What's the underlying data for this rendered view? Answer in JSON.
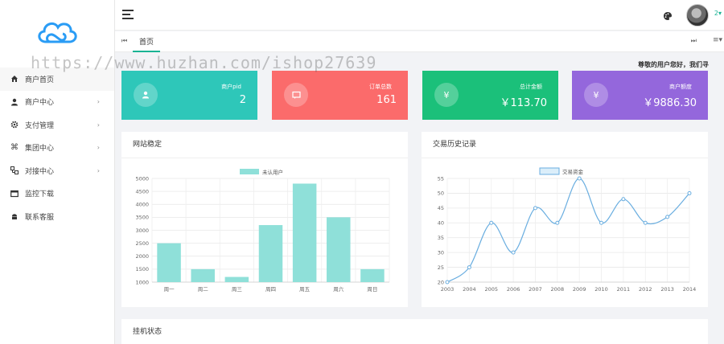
{
  "sidebar": {
    "items": [
      {
        "label": "商户首页",
        "icon": "home-icon",
        "arrow": ""
      },
      {
        "label": "商户中心",
        "icon": "user-icon",
        "arrow": "›"
      },
      {
        "label": "支付管理",
        "icon": "gear-icon",
        "arrow": "›"
      },
      {
        "label": "集团中心",
        "icon": "command-icon",
        "arrow": "›"
      },
      {
        "label": "对接中心",
        "icon": "connect-icon",
        "arrow": "›"
      },
      {
        "label": "监控下载",
        "icon": "window-icon",
        "arrow": ""
      },
      {
        "label": "联系客服",
        "icon": "android-icon",
        "arrow": ""
      }
    ]
  },
  "topbar": {
    "user_num": "2▾"
  },
  "tabs": {
    "first": "⏮",
    "home": "首页",
    "last": "⏭",
    "menu": "≡▾"
  },
  "greeting": "尊敬的用户您好，我们寻",
  "stats": [
    {
      "label": "商户pid",
      "value": "2",
      "icon": "user-icon",
      "color": "#2ec7b9"
    },
    {
      "label": "订单总数",
      "value": "161",
      "icon": "message-icon",
      "color": "#fb6b6b"
    },
    {
      "label": "总计金额",
      "value": "￥113.70",
      "icon": "yen-icon",
      "color": "#1bc07a"
    },
    {
      "label": "商户额度",
      "value": "￥9886.30",
      "icon": "yen-icon",
      "color": "#9467dc"
    }
  ],
  "panels": {
    "site_title": "网站稳定",
    "trade_title": "交易历史记录",
    "status_title": "挂机状态"
  },
  "watermark": "https://www.huzhan.com/ishop27639",
  "chart_data": [
    {
      "type": "bar",
      "categories": [
        "周一",
        "周二",
        "周三",
        "周四",
        "周五",
        "周六",
        "周日"
      ],
      "series": [
        {
          "name": "未认用户",
          "values": [
            2500,
            1500,
            1200,
            3200,
            4800,
            3500,
            1500
          ]
        }
      ],
      "ylim": [
        1000,
        5000
      ],
      "yticks": [
        1000,
        1500,
        2000,
        2500,
        3000,
        3500,
        4000,
        4500,
        5000
      ],
      "color": "#8fe0d9",
      "legend": "top"
    },
    {
      "type": "line",
      "x": [
        "2003",
        "2004",
        "2005",
        "2006",
        "2007",
        "2008",
        "2009",
        "2010",
        "2011",
        "2012",
        "2013",
        "2014"
      ],
      "series": [
        {
          "name": "交易资金",
          "values": [
            20,
            25,
            40,
            30,
            45,
            40,
            55,
            40,
            48,
            40,
            42,
            50
          ]
        }
      ],
      "ylim": [
        20,
        55
      ],
      "yticks": [
        20,
        25,
        30,
        35,
        40,
        45,
        50,
        55
      ],
      "color": "#6aaee0",
      "legend": "top"
    }
  ]
}
